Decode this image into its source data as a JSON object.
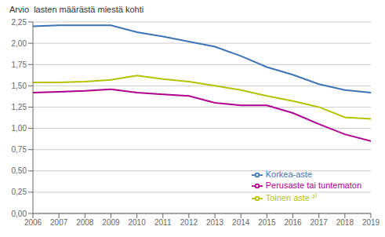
{
  "chart_data": {
    "type": "line",
    "ylabel": "Arvio  lasten määrästä miestä kohti",
    "x": [
      2006,
      2007,
      2008,
      2009,
      2010,
      2011,
      2012,
      2013,
      2014,
      2015,
      2016,
      2017,
      2018,
      2019
    ],
    "series": [
      {
        "name": "Korkea-aste",
        "color": "#3E74B4",
        "values": [
          2.2,
          2.21,
          2.21,
          2.21,
          2.13,
          2.08,
          2.02,
          1.96,
          1.85,
          1.72,
          1.63,
          1.52,
          1.45,
          1.42
        ]
      },
      {
        "name": "Toinen aste ²⁾",
        "color": "#B5C200",
        "values": [
          1.54,
          1.54,
          1.55,
          1.57,
          1.62,
          1.58,
          1.55,
          1.5,
          1.45,
          1.38,
          1.32,
          1.25,
          1.13,
          1.11
        ]
      },
      {
        "name": "Perusaste tai tuntematon",
        "color": "#B0008E",
        "values": [
          1.42,
          1.43,
          1.44,
          1.46,
          1.42,
          1.4,
          1.38,
          1.3,
          1.27,
          1.27,
          1.18,
          1.05,
          0.93,
          0.85
        ]
      }
    ],
    "xlim": [
      2006,
      2019
    ],
    "xticks": [
      2006,
      2007,
      2008,
      2009,
      2010,
      2011,
      2012,
      2013,
      2014,
      2015,
      2016,
      2017,
      2018,
      2019
    ],
    "ylim": [
      0,
      2.25
    ],
    "yticks": [
      {
        "value": 0,
        "label": "0,00"
      },
      {
        "value": 0.25,
        "label": "0,25"
      },
      {
        "value": 0.5,
        "label": "0,50"
      },
      {
        "value": 0.75,
        "label": "0,75"
      },
      {
        "value": 1,
        "label": "1,00"
      },
      {
        "value": 1.25,
        "label": "1,25"
      },
      {
        "value": 1.5,
        "label": "1,50"
      },
      {
        "value": 1.75,
        "label": "1,75"
      },
      {
        "value": 2,
        "label": "2,00"
      },
      {
        "value": 2.25,
        "label": "2,25"
      }
    ],
    "grid": true,
    "legend": "lower right"
  }
}
